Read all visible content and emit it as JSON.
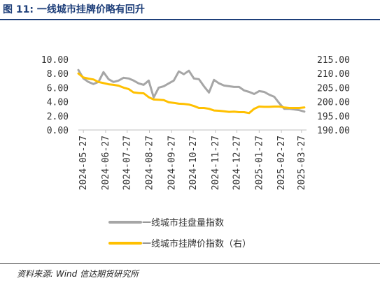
{
  "figure": {
    "title": "图 11:  一线城市挂牌价略有回升",
    "source": "资料来源:    Wind  信达期货研究所"
  },
  "colors": {
    "title": "#1e3f7a",
    "series_listing": "#a6a6a6",
    "series_price": "#ffc000"
  },
  "chart_data": {
    "type": "line",
    "x_tick_labels": [
      "2024-05-27",
      "2024-06-27",
      "2024-07-27",
      "2024-08-27",
      "2024-09-27",
      "2024-10-27",
      "2024-11-27",
      "2024-12-27",
      "2025-01-27",
      "2025-02-27",
      "2025-03-27"
    ],
    "x_range": [
      "2024-05-20",
      "2025-04-03"
    ],
    "y_left": {
      "ticks": [
        "10.00",
        "8.00",
        "6.00",
        "4.00",
        "2.00",
        "0.00"
      ],
      "range": [
        0,
        10
      ]
    },
    "y_right": {
      "ticks": [
        "215.00",
        "210.00",
        "205.00",
        "200.00",
        "195.00",
        "190.00"
      ],
      "range": [
        190,
        215
      ]
    },
    "grid": false,
    "legend_position": "bottom-center",
    "series": [
      {
        "name": "一线城市挂盘量指数",
        "axis": "left",
        "x": [
          "2024-05-20",
          "2024-05-27",
          "2024-06-03",
          "2024-06-10",
          "2024-06-17",
          "2024-06-24",
          "2024-07-01",
          "2024-07-08",
          "2024-07-15",
          "2024-07-22",
          "2024-07-29",
          "2024-08-05",
          "2024-08-12",
          "2024-08-19",
          "2024-08-26",
          "2024-09-02",
          "2024-09-09",
          "2024-09-16",
          "2024-09-23",
          "2024-09-30",
          "2024-10-07",
          "2024-10-14",
          "2024-10-21",
          "2024-10-28",
          "2024-11-04",
          "2024-11-11",
          "2024-11-18",
          "2024-11-25",
          "2024-12-02",
          "2024-12-09",
          "2024-12-16",
          "2024-12-23",
          "2024-12-30",
          "2025-01-06",
          "2025-01-13",
          "2025-01-20",
          "2025-01-27",
          "2025-02-03",
          "2025-02-10",
          "2025-02-17",
          "2025-02-24",
          "2025-03-03",
          "2025-03-10",
          "2025-03-17",
          "2025-03-24",
          "2025-03-31"
        ],
        "values": [
          8.5,
          7.3,
          6.8,
          6.5,
          6.8,
          8.2,
          7.2,
          6.8,
          7.0,
          7.4,
          7.3,
          7.0,
          6.6,
          6.4,
          7.0,
          4.6,
          6.0,
          6.2,
          6.6,
          7.0,
          8.3,
          7.9,
          8.4,
          7.3,
          7.2,
          6.2,
          5.3,
          7.1,
          6.6,
          6.3,
          6.2,
          6.1,
          6.1,
          5.6,
          5.4,
          5.1,
          5.5,
          5.4,
          5.0,
          4.7,
          3.8,
          3.0,
          3.0,
          2.9,
          2.8,
          2.6
        ]
      },
      {
        "name": "一线城市挂牌价指数（右）",
        "axis": "right",
        "x": [
          "2024-05-20",
          "2024-05-27",
          "2024-06-03",
          "2024-06-10",
          "2024-06-17",
          "2024-06-24",
          "2024-07-01",
          "2024-07-08",
          "2024-07-15",
          "2024-07-22",
          "2024-07-29",
          "2024-08-05",
          "2024-08-12",
          "2024-08-19",
          "2024-08-26",
          "2024-09-02",
          "2024-09-09",
          "2024-09-16",
          "2024-09-23",
          "2024-09-30",
          "2024-10-07",
          "2024-10-14",
          "2024-10-21",
          "2024-10-28",
          "2024-11-04",
          "2024-11-11",
          "2024-11-18",
          "2024-11-25",
          "2024-12-02",
          "2024-12-09",
          "2024-12-16",
          "2024-12-23",
          "2024-12-30",
          "2025-01-06",
          "2025-01-13",
          "2025-01-20",
          "2025-01-27",
          "2025-02-03",
          "2025-02-10",
          "2025-02-17",
          "2025-02-24",
          "2025-03-03",
          "2025-03-10",
          "2025-03-17",
          "2025-03-24",
          "2025-03-31"
        ],
        "values": [
          210.0,
          208.6,
          208.2,
          207.9,
          207.0,
          206.6,
          206.2,
          206.0,
          205.7,
          205.0,
          204.5,
          203.3,
          203.1,
          203.0,
          201.6,
          200.8,
          200.7,
          200.6,
          199.8,
          199.6,
          199.3,
          199.2,
          199.0,
          198.5,
          197.8,
          197.8,
          197.5,
          196.9,
          196.8,
          196.6,
          196.4,
          196.5,
          196.3,
          196.3,
          196.0,
          197.5,
          198.3,
          198.2,
          198.2,
          198.3,
          198.3,
          198.0,
          197.8,
          197.8,
          197.8,
          198.0
        ]
      }
    ]
  }
}
